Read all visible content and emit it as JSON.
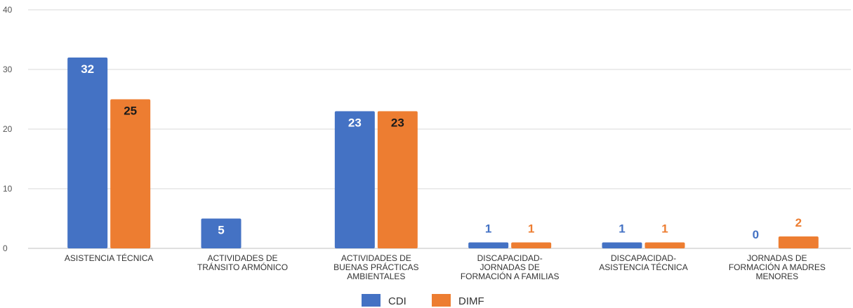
{
  "chart_data": {
    "type": "bar",
    "categories": [
      [
        "ASISTENCIA TÉCNICA"
      ],
      [
        "ACTIVIDADES DE",
        "TRÁNSITO ARMÓNICO"
      ],
      [
        "ACTIVIDADES DE",
        "BUENAS PRÁCTICAS",
        "AMBIENTALES"
      ],
      [
        "DISCAPACIDAD-",
        "JORNADAS DE",
        "FORMACIÓN A FAMILIAS"
      ],
      [
        "DISCAPACIDAD-",
        "ASISTENCIA TÉCNICA"
      ],
      [
        "JORNADAS DE",
        "FORMACIÓN A MADRES",
        "MENORES"
      ]
    ],
    "series": [
      {
        "name": "CDI",
        "color": "#4472C4",
        "values": [
          32,
          5,
          23,
          1,
          1,
          0
        ]
      },
      {
        "name": "DIMF",
        "color": "#ED7D31",
        "values": [
          25,
          null,
          23,
          1,
          1,
          2
        ]
      }
    ],
    "ylim": [
      0,
      40
    ],
    "yticks": [
      0,
      10,
      20,
      30,
      40
    ],
    "grid": true,
    "legend_position": "bottom",
    "title": "",
    "xlabel": "",
    "ylabel": ""
  }
}
